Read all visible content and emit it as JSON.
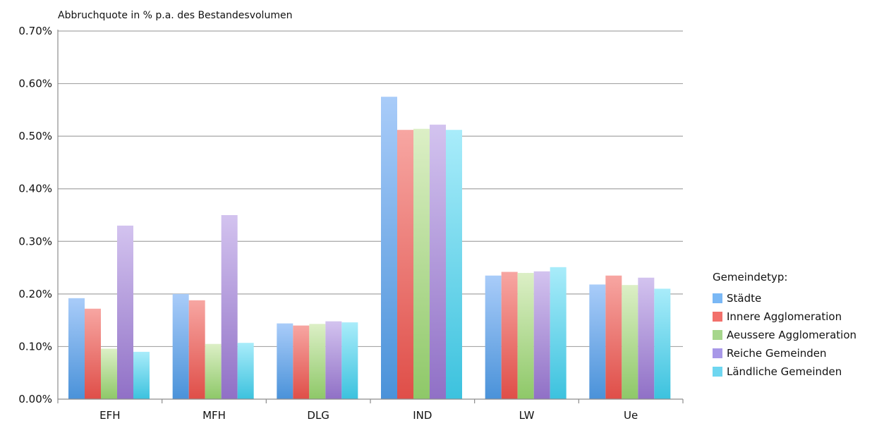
{
  "chart_data": {
    "type": "bar",
    "ylabel": "Abbruchquote in % p.a. des Bestandesvolumen",
    "ylim": [
      0,
      0.7
    ],
    "yticks": [
      "0.00%",
      "0.10%",
      "0.20%",
      "0.30%",
      "0.40%",
      "0.50%",
      "0.60%",
      "0.70%"
    ],
    "grid": true,
    "legend_position": "right",
    "legend_title": "Gemeindetyp:",
    "categories": [
      "EFH",
      "MFH",
      "DLG",
      "IND",
      "LW",
      "Ue"
    ],
    "series": [
      {
        "name": "Städte",
        "color": "#7ab8f5",
        "gradient": [
          "#a9ccf9",
          "#4a92d9"
        ],
        "values": [
          0.192,
          0.2,
          0.144,
          0.575,
          0.235,
          0.218
        ]
      },
      {
        "name": "Innere Agglomeration",
        "color": "#f2706b",
        "gradient": [
          "#f7a6a2",
          "#df4e48"
        ],
        "values": [
          0.172,
          0.188,
          0.14,
          0.512,
          0.242,
          0.235
        ]
      },
      {
        "name": "Aeussere Agglomeration",
        "color": "#a6d68c",
        "gradient": [
          "#dcefc6",
          "#8ec868"
        ],
        "values": [
          0.096,
          0.105,
          0.143,
          0.514,
          0.24,
          0.217
        ]
      },
      {
        "name": "Reiche Gemeinden",
        "color": "#a898e8",
        "gradient": [
          "#d3c3ef",
          "#9070c6"
        ],
        "values": [
          0.33,
          0.35,
          0.148,
          0.522,
          0.243,
          0.231
        ]
      },
      {
        "name": "Ländliche Gemeinden",
        "color": "#6ed6f0",
        "gradient": [
          "#a9ecfa",
          "#3cc2de"
        ],
        "values": [
          0.09,
          0.107,
          0.146,
          0.512,
          0.251,
          0.21
        ]
      }
    ]
  }
}
